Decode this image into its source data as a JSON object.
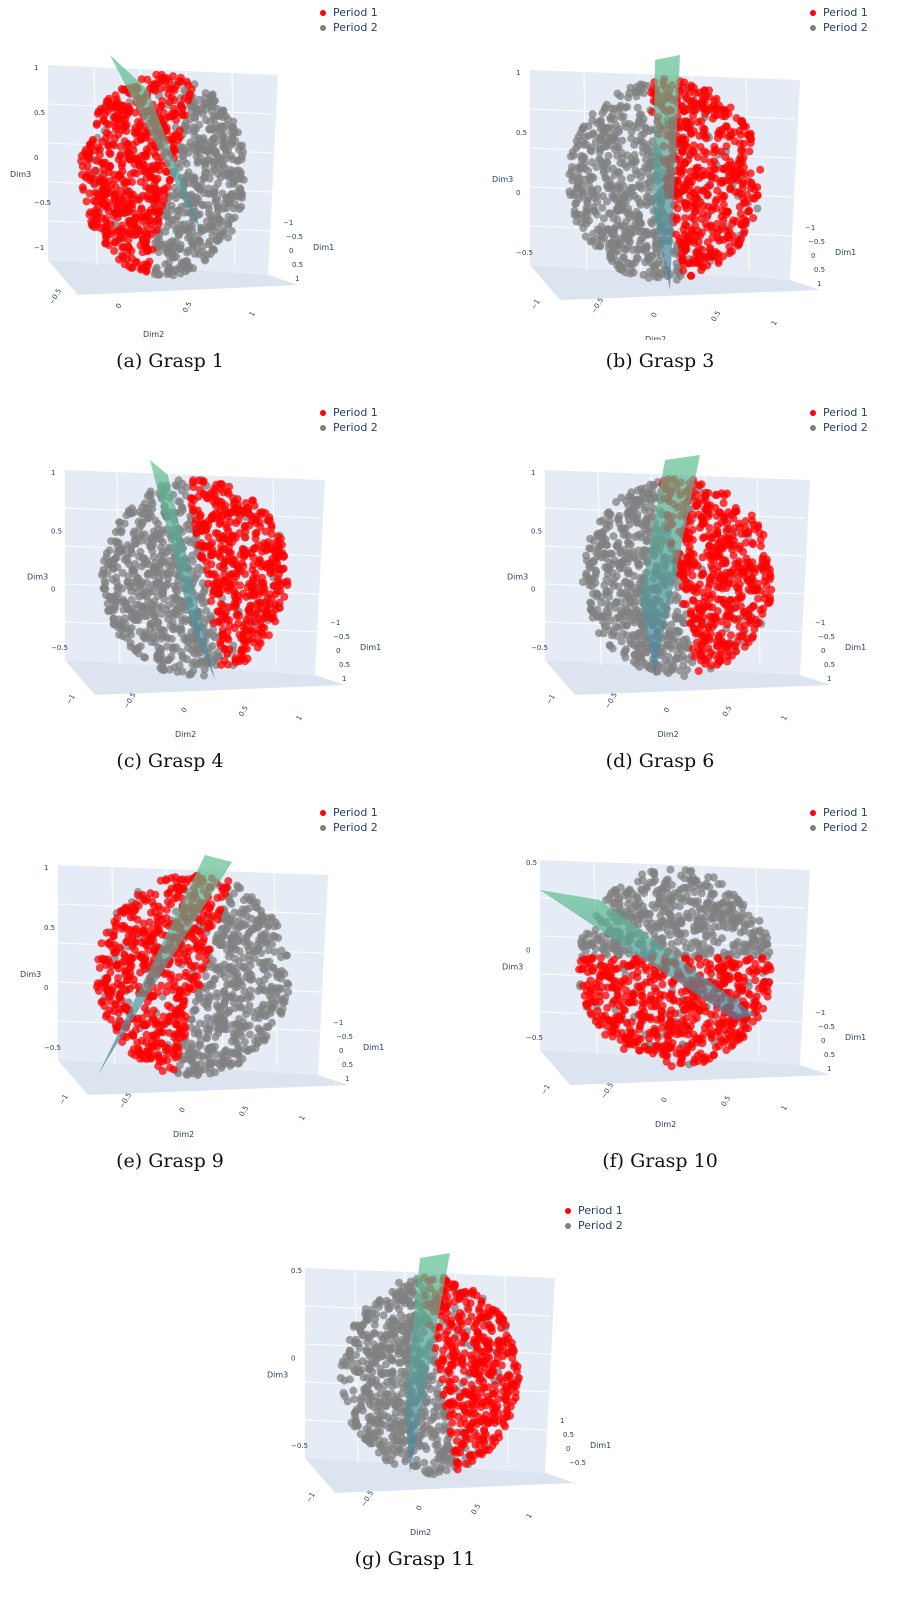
{
  "legend": {
    "period1": "Period 1",
    "period2": "Period 2"
  },
  "colors": {
    "period1": "#ff0000",
    "period2": "#808080",
    "plane_top": "#5fc28f",
    "plane_bottom": "#4a7fa0",
    "scene_bg": "#e5ecf6"
  },
  "chart_data": [
    {
      "type": "scatter3d",
      "caption": "(a) Grasp 1",
      "xlabel": "Dim1",
      "ylabel": "Dim2",
      "zlabel": "Dim3",
      "ticks_dim1": [
        "−1",
        "−0.5",
        "0",
        "0.5",
        "1"
      ],
      "ticks_dim2": [
        "−0.5",
        "0",
        "0.5",
        "1"
      ],
      "ticks_dim3": [
        "−1",
        "−0.5",
        "0",
        "0.5",
        "1"
      ],
      "series": [
        {
          "name": "Period 1"
        },
        {
          "name": "Period 2"
        }
      ]
    },
    {
      "type": "scatter3d",
      "caption": "(b) Grasp 3",
      "xlabel": "Dim1",
      "ylabel": "Dim2",
      "zlabel": "Dim3",
      "ticks_dim1": [
        "−1",
        "−0.5",
        "0",
        "0.5",
        "1"
      ],
      "ticks_dim2": [
        "−1",
        "−0.5",
        "0",
        "0.5",
        "1"
      ],
      "ticks_dim3": [
        "−0.5",
        "0",
        "0.5",
        "1"
      ],
      "series": [
        {
          "name": "Period 1"
        },
        {
          "name": "Period 2"
        }
      ]
    },
    {
      "type": "scatter3d",
      "caption": "(c) Grasp 4",
      "xlabel": "Dim1",
      "ylabel": "Dim2",
      "zlabel": "Dim3",
      "ticks_dim1": [
        "−1",
        "−0.5",
        "0",
        "0.5",
        "1"
      ],
      "ticks_dim2": [
        "−1",
        "−0.5",
        "0",
        "0.5",
        "1"
      ],
      "ticks_dim3": [
        "−0.5",
        "0",
        "0.5",
        "1"
      ],
      "series": [
        {
          "name": "Period 1"
        },
        {
          "name": "Period 2"
        }
      ]
    },
    {
      "type": "scatter3d",
      "caption": "(d) Grasp 6",
      "xlabel": "Dim1",
      "ylabel": "Dim2",
      "zlabel": "Dim3",
      "ticks_dim1": [
        "−1",
        "−0.5",
        "0",
        "0.5",
        "1"
      ],
      "ticks_dim2": [
        "−1",
        "−0.5",
        "0",
        "0.5",
        "1"
      ],
      "ticks_dim3": [
        "−0.5",
        "0",
        "0.5",
        "1"
      ],
      "series": [
        {
          "name": "Period 1"
        },
        {
          "name": "Period 2"
        }
      ]
    },
    {
      "type": "scatter3d",
      "caption": "(e) Grasp 9",
      "xlabel": "Dim1",
      "ylabel": "Dim2",
      "zlabel": "Dim3",
      "ticks_dim1": [
        "−1",
        "−0.5",
        "0",
        "0.5",
        "1"
      ],
      "ticks_dim2": [
        "−1",
        "−0.5",
        "0",
        "0.5",
        "1"
      ],
      "ticks_dim3": [
        "−0.5",
        "0",
        "0.5",
        "1"
      ],
      "series": [
        {
          "name": "Period 1"
        },
        {
          "name": "Period 2"
        }
      ]
    },
    {
      "type": "scatter3d",
      "caption": "(f) Grasp 10",
      "xlabel": "Dim1",
      "ylabel": "Dim2",
      "zlabel": "Dim3",
      "ticks_dim1": [
        "−1",
        "−0.5",
        "0",
        "0.5",
        "1"
      ],
      "ticks_dim2": [
        "−1",
        "−0.5",
        "0",
        "0.5",
        "1"
      ],
      "ticks_dim3": [
        "−0.5",
        "0",
        "0.5"
      ],
      "series": [
        {
          "name": "Period 1"
        },
        {
          "name": "Period 2"
        }
      ]
    },
    {
      "type": "scatter3d",
      "caption": "(g) Grasp 11",
      "xlabel": "Dim1",
      "ylabel": "Dim2",
      "zlabel": "Dim3",
      "ticks_dim1": [
        "1",
        "0.5",
        "0",
        "−0.5"
      ],
      "ticks_dim2": [
        "−1",
        "−0.5",
        "0",
        "0.5",
        "1"
      ],
      "ticks_dim3": [
        "−0.5",
        "0",
        "0.5"
      ],
      "series": [
        {
          "name": "Period 1"
        },
        {
          "name": "Period 2"
        }
      ]
    }
  ]
}
